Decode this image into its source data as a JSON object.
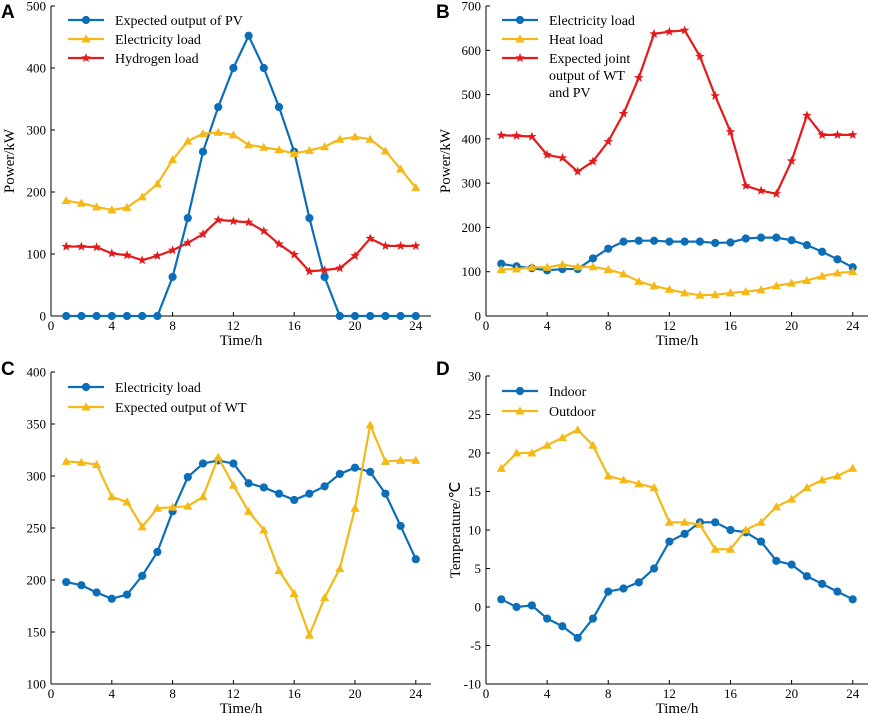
{
  "figure": {
    "width": 872,
    "height": 716
  },
  "chart_data": [
    {
      "panel": "A",
      "type": "line",
      "xlabel": "Time/h",
      "ylabel": "Power/kW",
      "xlim": [
        0,
        25
      ],
      "ylim": [
        0,
        500
      ],
      "xticks": [
        0,
        4,
        8,
        12,
        16,
        20,
        24
      ],
      "yticks": [
        0,
        100,
        200,
        300,
        400,
        500
      ],
      "x": [
        1,
        2,
        3,
        4,
        5,
        6,
        7,
        8,
        9,
        10,
        11,
        12,
        13,
        14,
        15,
        16,
        17,
        18,
        19,
        20,
        21,
        22,
        23,
        24
      ],
      "series": [
        {
          "name": "Expected output of PV",
          "color": "#0d6eb8",
          "marker": "circle",
          "values": [
            0,
            0,
            0,
            0,
            0,
            0,
            0,
            63,
            158,
            265,
            337,
            400,
            452,
            400,
            337,
            265,
            158,
            63,
            0,
            0,
            0,
            0,
            0,
            0
          ]
        },
        {
          "name": "Electricity load",
          "color": "#f5b917",
          "marker": "triangle",
          "values": [
            186,
            182,
            176,
            171,
            175,
            192,
            213,
            252,
            282,
            294,
            296,
            292,
            276,
            272,
            268,
            262,
            267,
            273,
            285,
            289,
            285,
            266,
            237,
            207
          ]
        },
        {
          "name": "Hydrogen load",
          "color": "#e41a1c",
          "marker": "star",
          "values": [
            112,
            112,
            111,
            101,
            98,
            90,
            97,
            106,
            118,
            132,
            155,
            153,
            151,
            137,
            116,
            99,
            72,
            74,
            77,
            97,
            125,
            113,
            113,
            113
          ]
        }
      ]
    },
    {
      "panel": "B",
      "type": "line",
      "xlabel": "Time/h",
      "ylabel": "Power/kW",
      "xlim": [
        0,
        25
      ],
      "ylim": [
        0,
        700
      ],
      "xticks": [
        0,
        4,
        8,
        12,
        16,
        20,
        24
      ],
      "yticks": [
        0,
        100,
        200,
        300,
        400,
        500,
        600,
        700
      ],
      "x": [
        1,
        2,
        3,
        4,
        5,
        6,
        7,
        8,
        9,
        10,
        11,
        12,
        13,
        14,
        15,
        16,
        17,
        18,
        19,
        20,
        21,
        22,
        23,
        24
      ],
      "series": [
        {
          "name": "Electricity  load",
          "color": "#0d6eb8",
          "marker": "circle",
          "values": [
            118,
            112,
            108,
            103,
            106,
            106,
            130,
            152,
            168,
            170,
            170,
            168,
            168,
            168,
            165,
            166,
            175,
            177,
            177,
            171,
            160,
            145,
            128,
            110
          ]
        },
        {
          "name": "Heat load",
          "color": "#f5b917",
          "marker": "triangle",
          "values": [
            105,
            106,
            110,
            110,
            116,
            111,
            111,
            105,
            95,
            78,
            68,
            60,
            52,
            47,
            48,
            52,
            55,
            59,
            68,
            74,
            80,
            90,
            97,
            100
          ]
        },
        {
          "name": "Expected joint output of WT and PV",
          "legend_lines": [
            "Expected joint",
            "output of WT",
            "and PV"
          ],
          "color": "#e41a1c",
          "marker": "star",
          "values": [
            408,
            407,
            405,
            364,
            357,
            326,
            349,
            394,
            457,
            538,
            637,
            642,
            645,
            586,
            497,
            416,
            294,
            283,
            276,
            350,
            453,
            409,
            409,
            409
          ]
        }
      ]
    },
    {
      "panel": "C",
      "type": "line",
      "xlabel": "Time/h",
      "ylabel": "",
      "xlim": [
        0,
        25
      ],
      "ylim": [
        100,
        400
      ],
      "xticks": [
        0,
        4,
        8,
        12,
        16,
        20,
        24
      ],
      "yticks": [
        100,
        150,
        200,
        250,
        300,
        350,
        400
      ],
      "x": [
        1,
        2,
        3,
        4,
        5,
        6,
        7,
        8,
        9,
        10,
        11,
        12,
        13,
        14,
        15,
        16,
        17,
        18,
        19,
        20,
        21,
        22,
        23,
        24
      ],
      "series": [
        {
          "name": "Electricity load",
          "color": "#0d6eb8",
          "marker": "circle",
          "values": [
            198,
            195,
            188,
            182,
            186,
            204,
            227,
            266,
            299,
            312,
            315,
            312,
            293,
            289,
            283,
            277,
            283,
            290,
            302,
            308,
            304,
            283,
            252,
            220
          ]
        },
        {
          "name": "Expected output of  WT",
          "color": "#f5b917",
          "marker": "triangle",
          "values": [
            314,
            313,
            311,
            280,
            275,
            251,
            269,
            270,
            271,
            280,
            318,
            291,
            266,
            248,
            209,
            187,
            147,
            183,
            211,
            269,
            349,
            314,
            315,
            315
          ]
        }
      ]
    },
    {
      "panel": "D",
      "type": "line",
      "xlabel": "Time/h",
      "ylabel": "Temperature/℃",
      "xlim": [
        0,
        25
      ],
      "ylim": [
        -10,
        30
      ],
      "xticks": [
        0,
        4,
        8,
        12,
        16,
        20,
        24
      ],
      "yticks": [
        -10,
        -5,
        0,
        5,
        10,
        15,
        20,
        25,
        30
      ],
      "x": [
        1,
        2,
        3,
        4,
        5,
        6,
        7,
        8,
        9,
        10,
        11,
        12,
        13,
        14,
        15,
        16,
        17,
        18,
        19,
        20,
        21,
        22,
        23,
        24
      ],
      "series": [
        {
          "name": "Indoor",
          "color": "#0d6eb8",
          "marker": "circle",
          "values": [
            1,
            0,
            0.2,
            -1.5,
            -2.5,
            -4,
            -1.5,
            2,
            2.4,
            3.2,
            5,
            8.5,
            9.5,
            11,
            11,
            10,
            9.7,
            8.5,
            6,
            5.5,
            4,
            3,
            2,
            1
          ]
        },
        {
          "name": "Outdoor",
          "color": "#f5b917",
          "marker": "triangle",
          "values": [
            18,
            20,
            20,
            21,
            22,
            23,
            21,
            17,
            16.5,
            16,
            15.5,
            11,
            11,
            10.7,
            7.5,
            7.5,
            10,
            11,
            13,
            14,
            15.5,
            16.5,
            17,
            18
          ]
        }
      ]
    }
  ]
}
